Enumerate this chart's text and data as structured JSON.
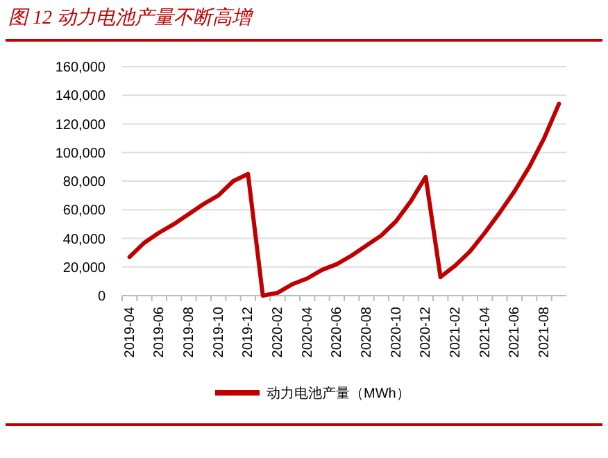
{
  "chart_data": {
    "type": "line",
    "title": "图 12  动力电池产量不断高增",
    "categories": [
      "2019-04",
      null,
      "2019-06",
      null,
      "2019-08",
      null,
      "2019-10",
      null,
      "2019-12",
      null,
      "2020-02",
      null,
      "2020-04",
      null,
      "2020-06",
      null,
      "2020-08",
      null,
      "2020-10",
      null,
      "2020-12",
      null,
      "2021-02",
      null,
      "2021-04",
      null,
      "2021-06",
      null,
      "2021-08",
      null
    ],
    "series": [
      {
        "name": "动力电池产量（MWh）",
        "color": "#c00000",
        "values": [
          27000,
          37000,
          44000,
          50000,
          57000,
          64000,
          70000,
          80000,
          85000,
          0,
          2000,
          8000,
          12000,
          18000,
          22000,
          28000,
          35000,
          42000,
          52000,
          66000,
          83000,
          13000,
          21000,
          31000,
          44000,
          58000,
          73000,
          90000,
          110000,
          134000
        ]
      }
    ],
    "ylim": [
      0,
      160000
    ],
    "yticks": [
      0,
      {
        "value": 20000,
        "label": "20,000"
      },
      {
        "value": 40000,
        "label": "40,000"
      },
      {
        "value": 60000,
        "label": "60,000"
      },
      {
        "value": 80000,
        "label": "80,000"
      },
      {
        "value": 100000,
        "label": "100,000"
      },
      {
        "value": 120000,
        "label": "120,000"
      },
      {
        "value": 140000,
        "label": "140,000"
      },
      {
        "value": 160000,
        "label": "160,000"
      }
    ],
    "grid": "y",
    "legend": "bottom",
    "marker": "none",
    "line_style": "solid"
  }
}
